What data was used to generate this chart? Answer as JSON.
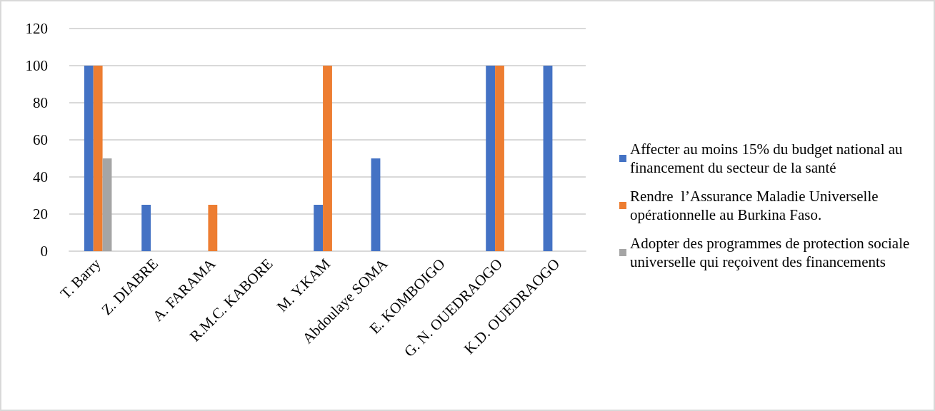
{
  "chart_data": {
    "type": "bar",
    "categories": [
      "T. Barry",
      "Z. DIABRE",
      "A. FARAMA",
      "R.M.C. KABORE",
      "M. Y.KAM",
      "Abdoulaye SOMA",
      "E. KOMBOIGO",
      "G. N. OUEDRAOGO",
      "K.D. OUEDRAOGO"
    ],
    "series": [
      {
        "name": "Affecter au moins 15% du budget national au financement du secteur de la santé",
        "color": "#4472c4",
        "values": [
          100,
          25,
          0,
          0,
          25,
          50,
          0,
          100,
          100
        ]
      },
      {
        "name": "Rendre  l’Assurance Maladie Universelle opérationnelle au Burkina Faso.",
        "color": "#ed7d31",
        "values": [
          100,
          0,
          25,
          0,
          100,
          0,
          0,
          100,
          0
        ]
      },
      {
        "name": "Adopter des programmes de protection sociale universelle qui reçoivent des financements",
        "color": "#a5a5a5",
        "values": [
          50,
          0,
          0,
          0,
          0,
          0,
          0,
          0,
          0
        ]
      }
    ],
    "ylim": [
      0,
      120
    ],
    "yticks": [
      0,
      20,
      40,
      60,
      80,
      100,
      120
    ],
    "grid": "y",
    "legend": "right"
  }
}
